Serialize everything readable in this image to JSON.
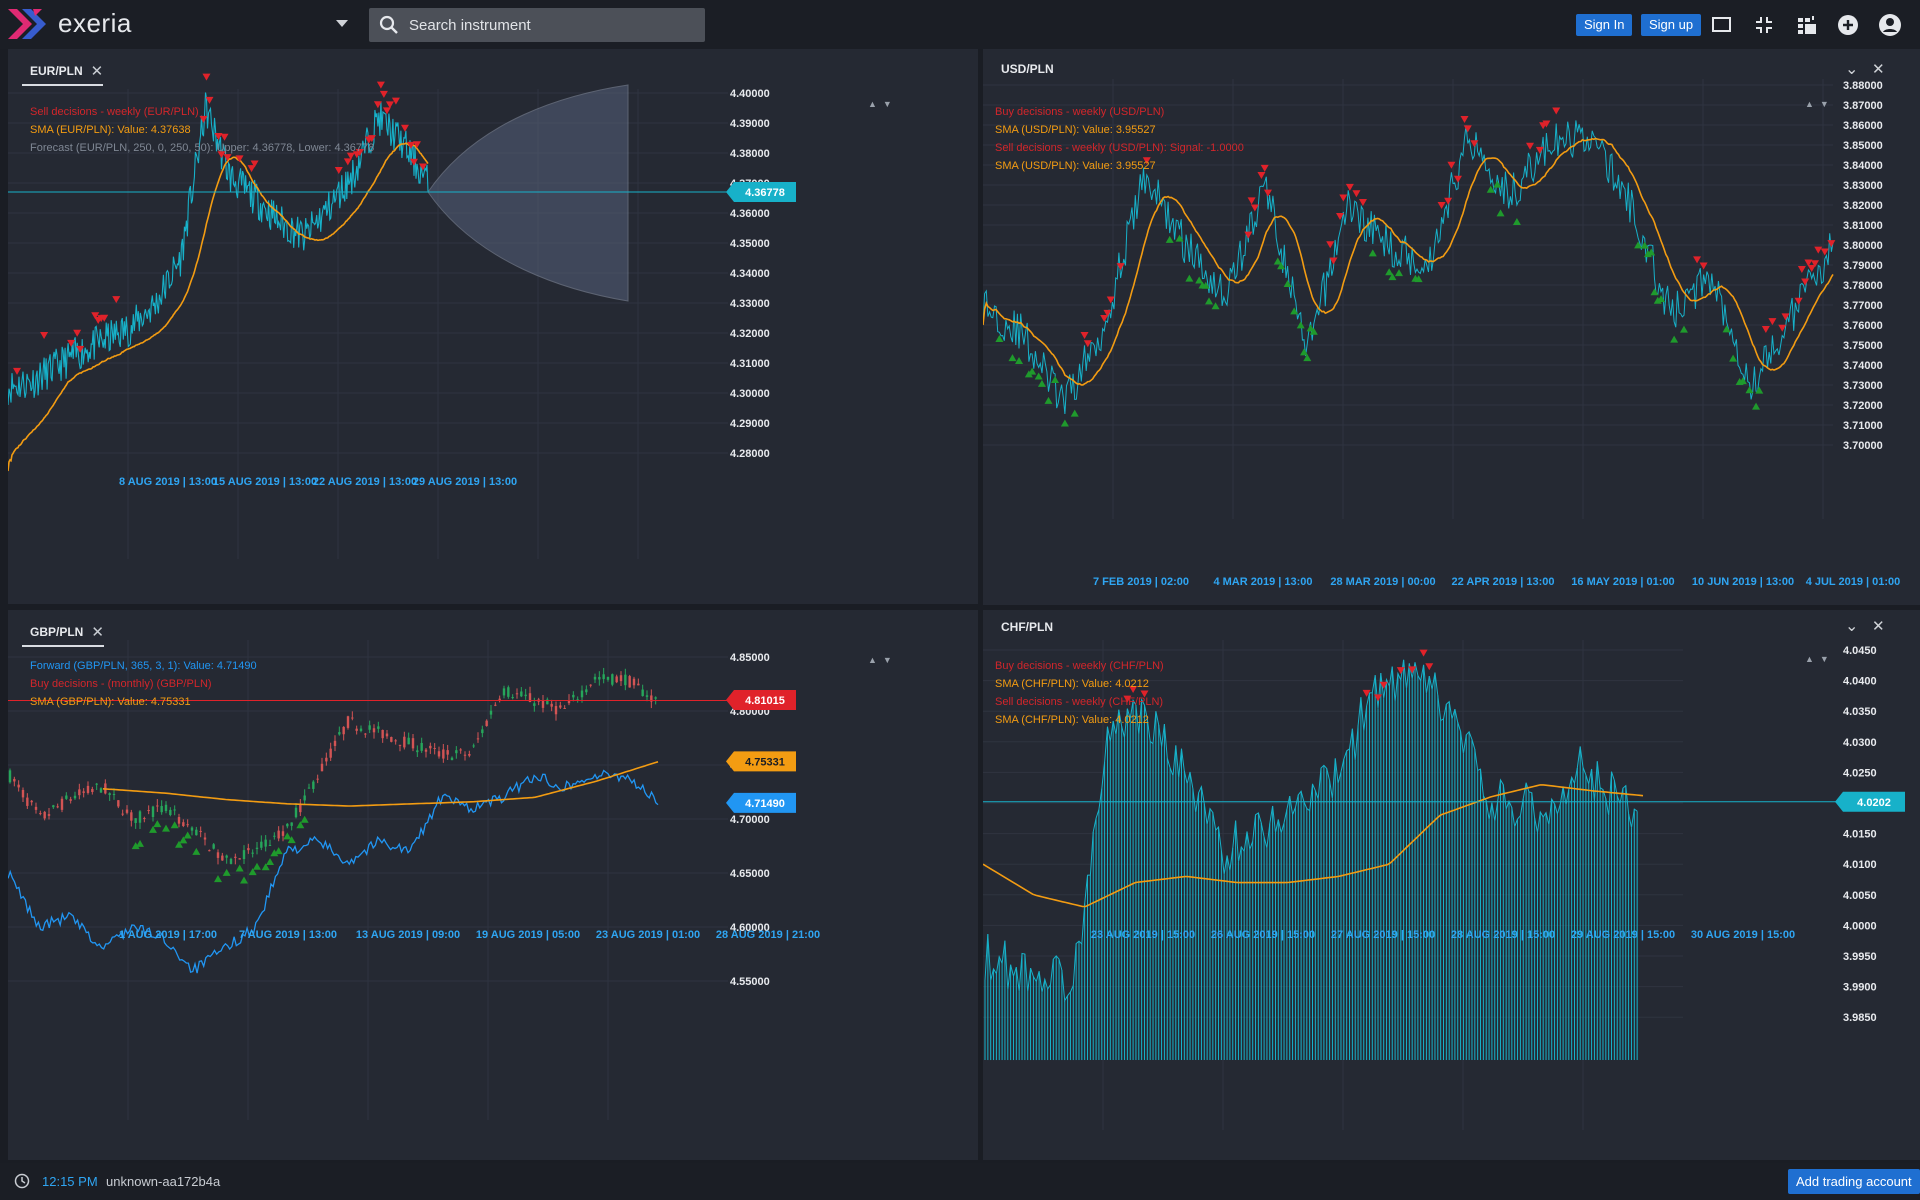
{
  "app": {
    "brand": "exeria"
  },
  "search": {
    "placeholder": "Search instrument"
  },
  "header": {
    "sign_in": "Sign In",
    "sign_up": "Sign up"
  },
  "colors": {
    "accent": "#1f6fd1",
    "line": "#17b1c9",
    "sma": "#f39c12",
    "sell": "#e0222a",
    "buy": "#1f9a2c",
    "forward": "#2196f3"
  },
  "panels": {
    "eurpln": {
      "tab": "EUR/PLN",
      "legend": [
        {
          "text": "Sell decisions - weekly (EUR/PLN)",
          "color": "#d2262b"
        },
        {
          "text": "SMA (EUR/PLN): Value: 4.37638",
          "color": "#f39c12"
        },
        {
          "text": "Forecast (EUR/PLN, 250, 0, 250, 50): Upper: 4.36778, Lower: 4.36778",
          "color": "#7f8794"
        }
      ],
      "price_label": "4.36778",
      "y_ticks": [
        "4.40000",
        "4.39000",
        "4.38000",
        "4.37000",
        "4.36000",
        "4.35000",
        "4.34000",
        "4.33000",
        "4.32000",
        "4.31000",
        "4.30000",
        "4.29000",
        "4.28000"
      ],
      "x_ticks": [
        "8 AUG 2019 | 13:00",
        "15 AUG 2019 | 13:00",
        "22 AUG 2019 | 13:00",
        "29 AUG 2019 | 13:00"
      ]
    },
    "usdpln": {
      "tab": "USD/PLN",
      "legend": [
        {
          "text": "Buy decisions - weekly (USD/PLN)",
          "color": "#d2262b"
        },
        {
          "text": "SMA (USD/PLN): Value: 3.95527",
          "color": "#f39c12"
        },
        {
          "text": "Sell decisions - weekly (USD/PLN): Signal: -1.0000",
          "color": "#d2262b"
        },
        {
          "text": "SMA (USD/PLN): Value: 3.95527",
          "color": "#f39c12"
        }
      ],
      "y_ticks": [
        "3.88000",
        "3.87000",
        "3.86000",
        "3.85000",
        "3.84000",
        "3.83000",
        "3.82000",
        "3.81000",
        "3.80000",
        "3.79000",
        "3.78000",
        "3.77000",
        "3.76000",
        "3.75000",
        "3.74000",
        "3.73000",
        "3.72000",
        "3.71000",
        "3.70000"
      ],
      "x_ticks": [
        "7 FEB 2019 | 02:00",
        "4 MAR 2019 | 13:00",
        "28 MAR 2019 | 00:00",
        "22 APR 2019 | 13:00",
        "16 MAY 2019 | 01:00",
        "10 JUN 2019 | 13:00",
        "4 JUL 2019 | 01:00"
      ]
    },
    "gbppln": {
      "tab": "GBP/PLN",
      "legend": [
        {
          "text": "Forward (GBP/PLN, 365, 3, 1): Value: 4.71490",
          "color": "#2196f3"
        },
        {
          "text": "Buy decisions - (monthly) (GBP/PLN)",
          "color": "#d2262b"
        },
        {
          "text": "SMA (GBP/PLN): Value: 4.75331",
          "color": "#f39c12"
        }
      ],
      "price_labels": [
        "4.81015",
        "4.75331",
        "4.71490"
      ],
      "y_ticks": [
        "4.85000",
        "4.80000",
        "4.75000",
        "4.70000",
        "4.65000",
        "4.60000",
        "4.55000"
      ],
      "x_ticks": [
        "1 AUG 2019 | 17:00",
        "7 AUG 2019 | 13:00",
        "13 AUG 2019 | 09:00",
        "19 AUG 2019 | 05:00",
        "23 AUG 2019 | 01:00",
        "28 AUG 2019 | 21:00"
      ]
    },
    "chfpln": {
      "tab": "CHF/PLN",
      "legend": [
        {
          "text": "Buy decisions - weekly (CHF/PLN)",
          "color": "#d2262b"
        },
        {
          "text": "SMA (CHF/PLN): Value: 4.0212",
          "color": "#f39c12"
        },
        {
          "text": "Sell decisions - weekly (CHF/PLN)",
          "color": "#d2262b"
        },
        {
          "text": "SMA (CHF/PLN): Value: 4.0212",
          "color": "#f39c12"
        }
      ],
      "price_label": "4.0202",
      "y_ticks": [
        "4.0450",
        "4.0400",
        "4.0350",
        "4.0300",
        "4.0250",
        "4.0200",
        "4.0150",
        "4.0100",
        "4.0050",
        "4.0000",
        "3.9950",
        "3.9900",
        "3.9850"
      ],
      "x_ticks": [
        "23 AUG 2019 | 15:00",
        "26 AUG 2019 | 15:00",
        "27 AUG 2019 | 15:00",
        "28 AUG 2019 | 15:00",
        "29 AUG 2019 | 15:00",
        "30 AUG 2019 | 15:00"
      ]
    }
  },
  "status": {
    "time": "12:15 PM",
    "user": "unknown-aa172b4a",
    "add_account": "Add trading account"
  }
}
